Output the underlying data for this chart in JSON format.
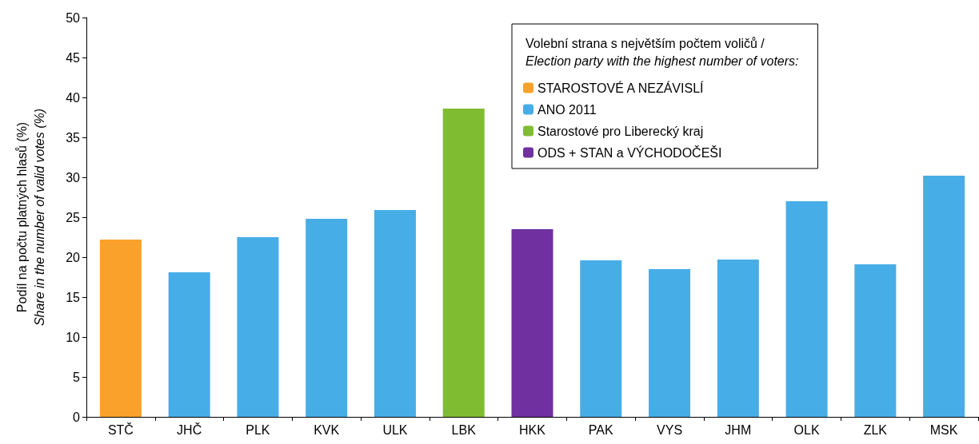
{
  "chart_data": {
    "type": "bar",
    "ylabel": "Podíl na počtu platných hlasů (%)\nShare in the number of valid votes (%)",
    "legend_title": "Volební strana s největším počtem voličů /\nElection party with the highest number of voters:",
    "categories": [
      "STČ",
      "JHČ",
      "PLK",
      "KVK",
      "ULK",
      "LBK",
      "HKK",
      "PAK",
      "VYS",
      "JHM",
      "OLK",
      "ZLK",
      "MSK"
    ],
    "series": [
      {
        "name": "STAROSTOVÉ A NEZÁVISLÍ",
        "color": "#f9a12b",
        "values": [
          22.2,
          null,
          null,
          null,
          null,
          null,
          null,
          null,
          null,
          null,
          null,
          null,
          null
        ]
      },
      {
        "name": "ANO 2011",
        "color": "#47ade6",
        "values": [
          null,
          18.1,
          22.5,
          24.8,
          25.9,
          null,
          null,
          19.6,
          18.5,
          19.7,
          27.0,
          19.1,
          30.2
        ]
      },
      {
        "name": "Starostové pro Liberecký kraj",
        "color": "#80bc31",
        "values": [
          null,
          null,
          null,
          null,
          null,
          38.6,
          null,
          null,
          null,
          null,
          null,
          null,
          null
        ]
      },
      {
        "name": "ODS + STAN a VÝCHODOČEŠI",
        "color": "#7030a0",
        "values": [
          null,
          null,
          null,
          null,
          null,
          null,
          23.5,
          null,
          null,
          null,
          null,
          null,
          null
        ]
      }
    ],
    "ylim": [
      0,
      50
    ],
    "yticks": [
      0,
      5,
      10,
      15,
      20,
      25,
      30,
      35,
      40,
      45,
      50
    ],
    "grid": false,
    "legend": "top right"
  }
}
